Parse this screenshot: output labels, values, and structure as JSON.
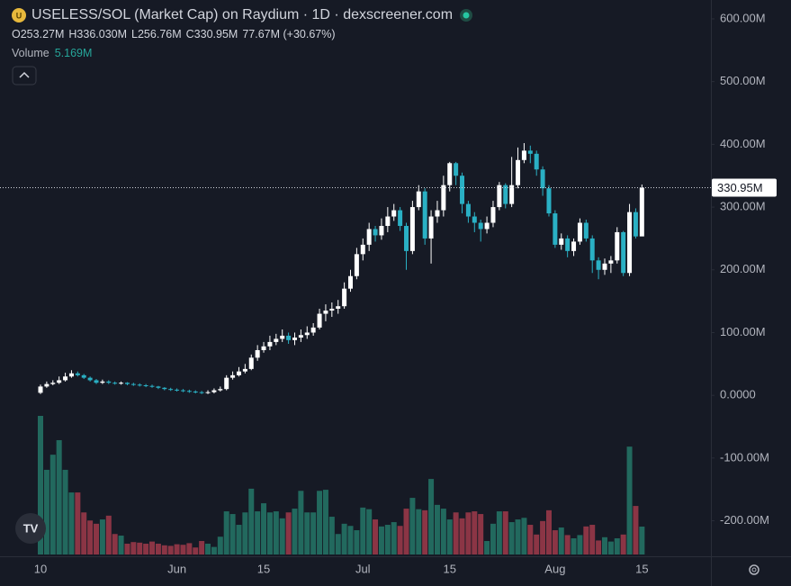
{
  "chart_data": {
    "type": "candlestick",
    "title": "USELESS/SOL (Market Cap) on Raydium · 1D · dexscreener.com",
    "ohlc_legend": {
      "open_label": "O",
      "open": "253.27M",
      "high_label": "H",
      "high": "336.030M",
      "low_label": "L",
      "low": "256.76M",
      "close_label": "C",
      "close": "330.95M",
      "change": "77.67M (+30.67%)"
    },
    "volume_label": "Volume",
    "volume_value": "5.169M",
    "last_price_label": "330.95M",
    "categories": [
      "10",
      null,
      null,
      null,
      null,
      null,
      null,
      null,
      null,
      null,
      null,
      null,
      null,
      null,
      null,
      null,
      null,
      null,
      null,
      null,
      null,
      null,
      "Jun",
      null,
      null,
      null,
      null,
      null,
      null,
      null,
      null,
      null,
      null,
      null,
      null,
      null,
      "15",
      null,
      null,
      null,
      null,
      null,
      null,
      null,
      null,
      null,
      null,
      null,
      null,
      null,
      null,
      null,
      "Jul",
      null,
      null,
      null,
      null,
      null,
      null,
      null,
      null,
      null,
      null,
      null,
      null,
      null,
      "15",
      null,
      null,
      null,
      null,
      null,
      null,
      null,
      null,
      null,
      null,
      null,
      null,
      null,
      null,
      null,
      null,
      "Aug",
      null,
      null,
      null,
      null,
      null,
      null,
      null,
      null,
      null,
      null,
      null,
      null,
      null,
      "15"
    ],
    "open": [
      4,
      14,
      18,
      20,
      24,
      30,
      35,
      32,
      28,
      24,
      20,
      22,
      20,
      19,
      20,
      18,
      17,
      16,
      15,
      14,
      12,
      10,
      9,
      8,
      7,
      6,
      5,
      4,
      5,
      8,
      10,
      28,
      32,
      38,
      42,
      60,
      72,
      78,
      85,
      90,
      95,
      88,
      92,
      96,
      100,
      108,
      130,
      135,
      138,
      142,
      170,
      190,
      225,
      240,
      265,
      255,
      270,
      285,
      295,
      270,
      230,
      300,
      325,
      250,
      285,
      295,
      335,
      370,
      350,
      305,
      285,
      275,
      265,
      275,
      300,
      335,
      305,
      335,
      375,
      390,
      385,
      360,
      330,
      290,
      240,
      250,
      230,
      245,
      275,
      250,
      215,
      200,
      210,
      215,
      260,
      195,
      292,
      253.27
    ],
    "high": [
      17,
      22,
      24,
      30,
      36,
      40,
      38,
      34,
      30,
      26,
      25,
      24,
      22,
      22,
      21,
      20,
      19,
      18,
      17,
      15,
      13,
      12,
      11,
      10,
      9,
      8,
      7,
      8,
      11,
      14,
      32,
      38,
      45,
      50,
      65,
      80,
      85,
      95,
      98,
      105,
      100,
      100,
      105,
      110,
      115,
      138,
      145,
      148,
      152,
      180,
      200,
      235,
      250,
      275,
      270,
      282,
      300,
      305,
      300,
      275,
      310,
      335,
      330,
      295,
      310,
      350,
      372,
      372,
      355,
      310,
      292,
      280,
      285,
      310,
      340,
      338,
      380,
      395,
      402,
      398,
      390,
      365,
      335,
      295,
      258,
      255,
      250,
      282,
      280,
      255,
      220,
      218,
      222,
      268,
      262,
      305,
      298,
      336.03
    ],
    "low": [
      2,
      12,
      16,
      18,
      22,
      28,
      30,
      26,
      22,
      18,
      18,
      18,
      17,
      17,
      16,
      15,
      14,
      13,
      12,
      10,
      8,
      7,
      6,
      5,
      4,
      3,
      2,
      2,
      3,
      6,
      8,
      25,
      30,
      35,
      40,
      55,
      68,
      72,
      80,
      85,
      82,
      80,
      85,
      90,
      95,
      105,
      118,
      125,
      130,
      138,
      165,
      185,
      215,
      230,
      245,
      248,
      260,
      278,
      262,
      200,
      225,
      295,
      240,
      210,
      275,
      285,
      325,
      335,
      290,
      275,
      260,
      245,
      258,
      268,
      295,
      298,
      300,
      330,
      370,
      370,
      350,
      318,
      285,
      235,
      232,
      220,
      222,
      240,
      245,
      195,
      185,
      192,
      195,
      210,
      190,
      190,
      250,
      256.76
    ],
    "close": [
      14,
      18,
      20,
      24,
      30,
      35,
      32,
      28,
      24,
      20,
      22,
      20,
      19,
      20,
      18,
      17,
      16,
      15,
      14,
      12,
      10,
      9,
      8,
      7,
      6,
      5,
      4,
      5,
      8,
      10,
      28,
      32,
      38,
      42,
      60,
      72,
      78,
      85,
      90,
      95,
      88,
      92,
      96,
      100,
      108,
      130,
      135,
      138,
      142,
      170,
      190,
      225,
      240,
      265,
      255,
      270,
      285,
      295,
      270,
      230,
      300,
      325,
      250,
      285,
      295,
      335,
      370,
      350,
      305,
      285,
      275,
      265,
      275,
      300,
      335,
      305,
      335,
      375,
      390,
      385,
      360,
      330,
      290,
      240,
      250,
      230,
      245,
      275,
      250,
      215,
      200,
      210,
      215,
      260,
      195,
      292,
      253.27,
      330.95
    ],
    "volume": [
      25.7,
      15.7,
      18.5,
      21.2,
      15.7,
      11.5,
      11.5,
      7.8,
      6.3,
      5.7,
      6.5,
      7.2,
      3.8,
      3.5,
      2.0,
      2.3,
      2.2,
      2.0,
      2.4,
      2.0,
      1.7,
      1.6,
      1.9,
      1.8,
      2.1,
      1.3,
      2.5,
      2.0,
      1.4,
      3.3,
      8.0,
      7.5,
      5.5,
      7.8,
      12.2,
      8.0,
      9.5,
      7.8,
      8.0,
      6.7,
      7.8,
      8.5,
      11.8,
      7.8,
      7.8,
      11.8,
      12.0,
      7.0,
      3.8,
      5.7,
      5.3,
      4.5,
      8.7,
      8.4,
      6.5,
      5.2,
      5.5,
      6.0,
      5.3,
      8.5,
      10.5,
      8.4,
      8.2,
      14.0,
      9.2,
      8.5,
      6.5,
      7.8,
      6.7,
      7.8,
      8.0,
      7.5,
      2.5,
      5.7,
      8.0,
      8.0,
      6.0,
      6.5,
      6.8,
      5.5,
      3.7,
      6.2,
      8.2,
      4.5,
      5.0,
      3.6,
      3.0,
      3.6,
      5.2,
      5.5,
      2.6,
      3.2,
      2.4,
      3.0,
      3.7,
      20.0,
      9.0,
      5.169
    ],
    "up_color": "#ffffff",
    "down_color": "#2ab0c4",
    "volume_up_color": "#22695e",
    "volume_down_color": "#8b3545",
    "ylim": [
      -256.6,
      630.1
    ],
    "yticks": [
      {
        "value": 600,
        "label": "600.00M"
      },
      {
        "value": 500,
        "label": "500.00M"
      },
      {
        "value": 400,
        "label": "400.00M"
      },
      {
        "value": 300,
        "label": "300.00M"
      },
      {
        "value": 200,
        "label": "200.00M"
      },
      {
        "value": 100,
        "label": "100.00M"
      },
      {
        "value": 0,
        "label": "0.0000"
      },
      {
        "value": -100,
        "label": "-100.00M"
      },
      {
        "value": -200,
        "label": "-200.00M"
      }
    ],
    "grid": false
  }
}
